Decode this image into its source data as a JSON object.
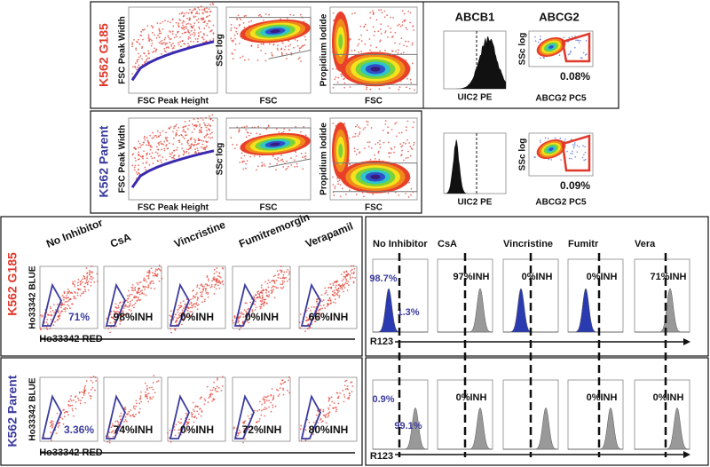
{
  "top": {
    "headers": [
      "ABCB1",
      "ABCG2"
    ],
    "rows": [
      {
        "label": "K562 G185",
        "scatter": [
          {
            "y_label": "FSC Peak Width",
            "x_label": "FSC Peak Height"
          },
          {
            "y_label": "SSc log",
            "x_label": "FSC"
          },
          {
            "y_label": "Propidium Iodide",
            "x_label": "FSC"
          }
        ],
        "abcb1_x_label": "UIC2 PE",
        "abcg2": {
          "y_label": "SSc log",
          "x_label": "ABCG2 PC5",
          "percent": "0.08%"
        }
      },
      {
        "label": "K562 Parent",
        "scatter": [
          {
            "y_label": "FSC Peak Width",
            "x_label": "FSC Peak Height"
          },
          {
            "y_label": "SSc log",
            "x_label": "FSC"
          },
          {
            "y_label": "Propidium Iodide",
            "x_label": "FSC"
          }
        ],
        "abcb1_x_label": "UIC2 PE",
        "abcg2": {
          "y_label": "SSc log",
          "x_label": "ABCG2 PC5",
          "percent": "0.09%"
        }
      }
    ]
  },
  "hoechst": {
    "conditions": [
      "No Inhibitor",
      "CsA",
      "Vincristine",
      "Fumitremorgin",
      "Verapamil"
    ],
    "y_label": "Ho33342 BLUE",
    "x_label": "Ho33342 RED",
    "rows": [
      {
        "label": "K562 G185",
        "annotations": [
          "71%",
          "98%INH",
          "0%INH",
          "0%INH",
          "66%INH"
        ]
      },
      {
        "label": "K562 Parent",
        "annotations": [
          "3.36%",
          "74%INH",
          "0%INH",
          "72%INH",
          "80%INH"
        ]
      }
    ]
  },
  "rhodamine": {
    "conditions": [
      "No Inhibitor",
      "CsA",
      "Vincristine",
      "Fumitr",
      "Vera"
    ],
    "x_label": "R123",
    "rows": [
      {
        "label": "K562 G185",
        "annotations": [
          [
            "98.7%",
            "1.3%"
          ],
          [
            "97%INH"
          ],
          [
            "0%INH"
          ],
          [
            "0%INH"
          ],
          [
            "71%INH"
          ]
        ]
      },
      {
        "label": "K562 Parent",
        "annotations": [
          [
            "0.9%",
            "99.1%"
          ],
          [
            "0%INH"
          ],
          [],
          [
            "0%INH"
          ],
          [
            "0%INH"
          ]
        ]
      }
    ]
  }
}
